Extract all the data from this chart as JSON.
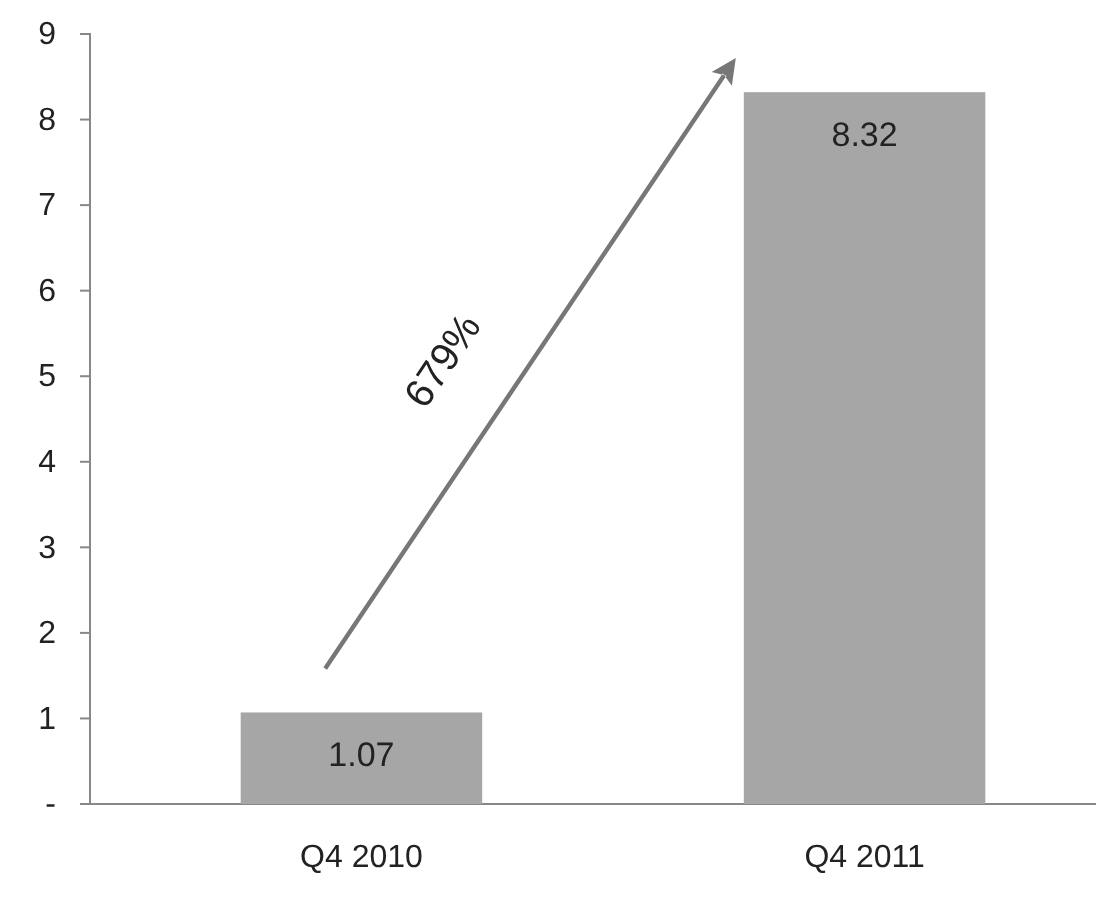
{
  "chart_data": {
    "type": "bar",
    "categories": [
      "Q4 2010",
      "Q4 2011"
    ],
    "values": [
      1.07,
      8.32
    ],
    "color": "#a6a6a6",
    "data_labels": true,
    "ylim": [
      0,
      9
    ],
    "yticks": [
      {
        "value": 0,
        "label": "-"
      },
      1,
      2,
      3,
      4,
      5,
      6,
      7,
      8,
      9
    ],
    "grid": false,
    "annotations": [
      "679%"
    ]
  }
}
